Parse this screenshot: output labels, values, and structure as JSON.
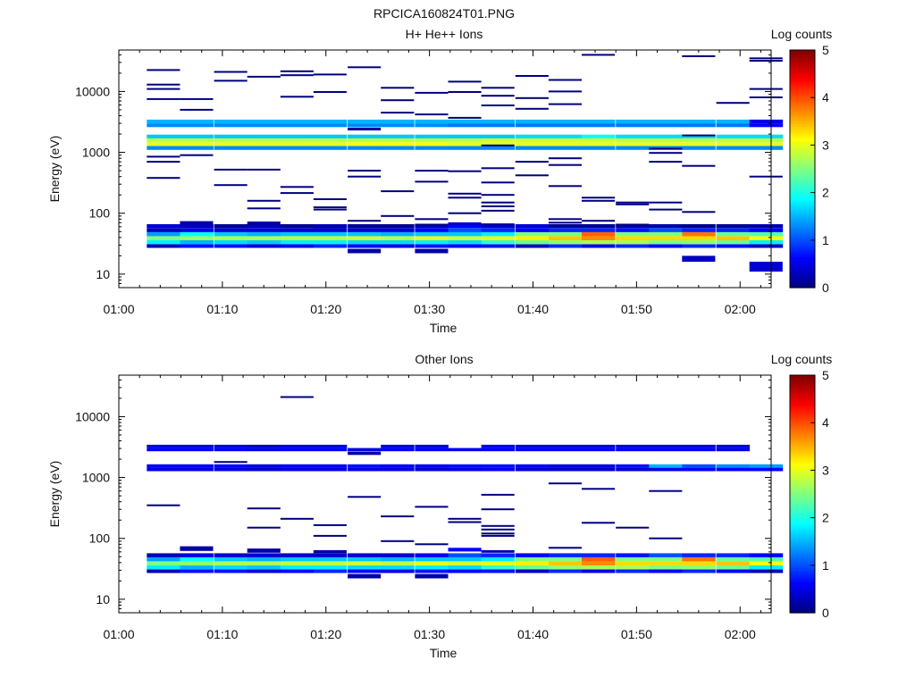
{
  "figure": {
    "title": "RPCICA160824T01.PNG"
  },
  "colormap": {
    "stops": [
      "#00007f",
      "#0000ff",
      "#0080ff",
      "#00ffff",
      "#80ff80",
      "#ffff00",
      "#ff8000",
      "#ff0000",
      "#7f0000"
    ]
  },
  "chart_data": [
    {
      "type": "heatmap",
      "title": "H+ He++ Ions",
      "xlabel": "Time",
      "ylabel": "Energy (eV)",
      "colorbar_label": "Log counts",
      "colorbar_ticks": [
        "0",
        "1",
        "2",
        "3",
        "4",
        "5"
      ],
      "xticks": [
        "01:00",
        "01:10",
        "01:20",
        "01:30",
        "01:40",
        "01:50",
        "02:00"
      ],
      "yticks": [
        "10",
        "100",
        "1000",
        "10000"
      ],
      "y_scale": "log",
      "xlim_minutes": [
        0,
        63
      ],
      "ylim_ev": [
        6,
        48000
      ],
      "clim": [
        0,
        5
      ],
      "bins_t_start_min": [
        2.7,
        5.9,
        9.2,
        12.4,
        15.6,
        18.8,
        22.1,
        25.3,
        28.6,
        31.8,
        35.0,
        38.3,
        41.5,
        44.7,
        48.0,
        51.2,
        54.4,
        57.7,
        60.9
      ],
      "bins_t_width_min": 3.2,
      "bands": [
        {
          "e_low": 27,
          "e_high": 31,
          "levels": [
            0.3,
            0.7,
            0.7,
            0.4,
            0.6,
            0.8,
            0.6,
            0.5,
            0.7,
            0.6,
            0.7,
            0.3,
            0.8,
            0.5,
            0.8,
            0.6,
            0.8,
            0.6,
            0.3
          ]
        },
        {
          "e_low": 31,
          "e_high": 36,
          "levels": [
            1.8,
            1.5,
            1.7,
            1.6,
            1.8,
            1.8,
            1.7,
            1.7,
            1.8,
            1.7,
            2.1,
            2.4,
            2.6,
            2.7,
            2.7,
            2.5,
            2.6,
            2.4,
            1.8
          ]
        },
        {
          "e_low": 36,
          "e_high": 42,
          "levels": [
            2.5,
            2.6,
            2.7,
            2.7,
            2.8,
            2.8,
            2.9,
            2.8,
            3.0,
            2.9,
            3.0,
            3.2,
            3.4,
            3.7,
            3.3,
            3.3,
            3.3,
            3.4,
            3.1
          ]
        },
        {
          "e_low": 42,
          "e_high": 49,
          "levels": [
            1.4,
            1.9,
            1.6,
            1.5,
            1.6,
            1.6,
            1.6,
            1.5,
            1.6,
            1.6,
            1.8,
            2.5,
            2.5,
            3.9,
            2.5,
            2.5,
            3.8,
            2.4,
            2.3
          ]
        },
        {
          "e_low": 49,
          "e_high": 57,
          "levels": [
            0.3,
            0.5,
            0.4,
            0.4,
            0.4,
            0.4,
            0.4,
            0.4,
            0.6,
            1.0,
            0.8,
            0.6,
            0.8,
            0.8,
            0.7,
            1.0,
            0.8,
            0.8,
            0.6
          ]
        },
        {
          "e_low": 57,
          "e_high": 66,
          "levels": [
            0.4,
            0.3,
            0.1,
            0.3,
            0.1,
            0.3,
            0.1,
            0.1,
            0.3,
            0.6,
            0.4,
            0.4,
            0.1,
            0.1,
            0.2,
            0.2,
            0.1,
            0.1,
            0.4
          ]
        },
        {
          "e_low": 1100,
          "e_high": 1270,
          "levels": [
            1.3,
            1.3,
            1.3,
            1.3,
            1.3,
            1.3,
            1.3,
            1.3,
            1.3,
            1.3,
            1.3,
            1.3,
            1.3,
            1.3,
            1.3,
            1.3,
            1.3,
            1.3,
            1.3
          ]
        },
        {
          "e_low": 1270,
          "e_high": 1470,
          "levels": [
            3.0,
            3.0,
            3.0,
            3.0,
            3.0,
            3.0,
            3.1,
            3.1,
            3.1,
            3.0,
            3.0,
            3.0,
            3.0,
            3.0,
            3.0,
            3.0,
            3.0,
            3.0,
            3.0
          ]
        },
        {
          "e_low": 1470,
          "e_high": 1700,
          "levels": [
            2.8,
            2.8,
            2.8,
            2.8,
            2.8,
            2.8,
            2.8,
            2.8,
            2.8,
            2.8,
            2.9,
            2.9,
            2.9,
            2.9,
            2.8,
            2.8,
            2.8,
            2.8,
            2.8
          ]
        },
        {
          "e_low": 1700,
          "e_high": 1960,
          "levels": [
            1.6,
            1.6,
            1.6,
            1.6,
            1.6,
            1.6,
            1.6,
            1.6,
            1.6,
            1.6,
            1.6,
            1.7,
            1.7,
            1.9,
            1.7,
            1.7,
            1.7,
            1.7,
            1.7
          ]
        },
        {
          "e_low": 2600,
          "e_high": 3000,
          "levels": [
            1.3,
            1.3,
            1.3,
            1.3,
            1.3,
            1.3,
            1.3,
            1.3,
            1.3,
            1.2,
            1.2,
            1.2,
            1.2,
            1.2,
            1.2,
            1.2,
            1.2,
            1.2,
            0.6
          ]
        },
        {
          "e_low": 3000,
          "e_high": 3450,
          "levels": [
            1.5,
            1.5,
            1.5,
            1.5,
            1.5,
            1.5,
            1.5,
            1.5,
            1.5,
            1.5,
            1.5,
            1.5,
            1.5,
            1.5,
            1.5,
            1.5,
            1.5,
            1.5,
            0.5
          ]
        }
      ],
      "lines": [
        [
          0,
          22500
        ],
        [
          0,
          13000
        ],
        [
          0,
          11000
        ],
        [
          0,
          7500
        ],
        [
          0,
          850
        ],
        [
          0,
          700
        ],
        [
          0,
          380
        ],
        [
          1,
          7500
        ],
        [
          1,
          5000
        ],
        [
          1,
          900
        ],
        [
          2,
          21000
        ],
        [
          2,
          15000
        ],
        [
          2,
          520
        ],
        [
          2,
          290
        ],
        [
          3,
          17500
        ],
        [
          3,
          520
        ],
        [
          3,
          160
        ],
        [
          3,
          120
        ],
        [
          4,
          21500
        ],
        [
          4,
          18500
        ],
        [
          4,
          8200
        ],
        [
          4,
          270
        ],
        [
          4,
          215
        ],
        [
          5,
          19000
        ],
        [
          5,
          9800
        ],
        [
          5,
          170
        ],
        [
          5,
          125
        ],
        [
          5,
          115
        ],
        [
          6,
          25000
        ],
        [
          6,
          500
        ],
        [
          6,
          400
        ],
        [
          6,
          75
        ],
        [
          7,
          11500
        ],
        [
          7,
          7200
        ],
        [
          7,
          4500
        ],
        [
          7,
          230
        ],
        [
          7,
          90
        ],
        [
          8,
          9500
        ],
        [
          8,
          4200
        ],
        [
          8,
          500
        ],
        [
          8,
          330
        ],
        [
          8,
          80
        ],
        [
          8,
          65
        ],
        [
          9,
          14500
        ],
        [
          9,
          9800
        ],
        [
          9,
          3700
        ],
        [
          9,
          490
        ],
        [
          9,
          210
        ],
        [
          9,
          180
        ],
        [
          9,
          100
        ],
        [
          10,
          11500
        ],
        [
          10,
          8500
        ],
        [
          10,
          5900
        ],
        [
          10,
          1300
        ],
        [
          10,
          550
        ],
        [
          10,
          320
        ],
        [
          10,
          200
        ],
        [
          10,
          150
        ],
        [
          10,
          130
        ],
        [
          10,
          110
        ],
        [
          11,
          18000
        ],
        [
          11,
          7800
        ],
        [
          11,
          5200
        ],
        [
          11,
          700
        ],
        [
          11,
          420
        ],
        [
          12,
          15500
        ],
        [
          12,
          10000
        ],
        [
          12,
          6200
        ],
        [
          12,
          800
        ],
        [
          12,
          620
        ],
        [
          12,
          280
        ],
        [
          12,
          80
        ],
        [
          12,
          70
        ],
        [
          13,
          40000
        ],
        [
          13,
          180
        ],
        [
          13,
          160
        ],
        [
          13,
          75
        ],
        [
          14,
          150
        ],
        [
          14,
          140
        ],
        [
          14,
          65
        ],
        [
          15,
          1150
        ],
        [
          15,
          980
        ],
        [
          15,
          700
        ],
        [
          15,
          150
        ],
        [
          15,
          115
        ],
        [
          16,
          38000
        ],
        [
          16,
          1900
        ],
        [
          16,
          600
        ],
        [
          16,
          105
        ],
        [
          16,
          62
        ],
        [
          17,
          6500
        ],
        [
          18,
          35000
        ],
        [
          18,
          32000
        ],
        [
          18,
          11000
        ],
        [
          18,
          8000
        ],
        [
          18,
          400
        ],
        [
          18,
          62
        ]
      ],
      "blocks": [
        [
          1,
          66,
          74,
          0.2
        ],
        [
          3,
          62,
          73,
          0.2
        ],
        [
          5,
          57,
          64,
          0.2
        ],
        [
          6,
          22,
          26,
          0.2
        ],
        [
          8,
          22,
          26,
          0.2
        ],
        [
          9,
          64,
          71,
          0.4
        ],
        [
          10,
          61,
          68,
          0.2
        ],
        [
          16,
          16,
          20,
          0.3
        ],
        [
          18,
          11,
          16,
          0.4
        ],
        [
          6,
          2300,
          2550,
          0.1
        ]
      ]
    },
    {
      "type": "heatmap",
      "title": "Other Ions",
      "xlabel": "Time",
      "ylabel": "Energy (eV)",
      "colorbar_label": "Log counts",
      "colorbar_ticks": [
        "0",
        "1",
        "2",
        "3",
        "4",
        "5"
      ],
      "xticks": [
        "01:00",
        "01:10",
        "01:20",
        "01:30",
        "01:40",
        "01:50",
        "02:00"
      ],
      "yticks": [
        "10",
        "100",
        "1000",
        "10000"
      ],
      "y_scale": "log",
      "xlim_minutes": [
        0,
        63
      ],
      "ylim_ev": [
        6,
        48000
      ],
      "clim": [
        0,
        5
      ],
      "bins_t_start_min": [
        2.7,
        5.9,
        9.2,
        12.4,
        15.6,
        18.8,
        22.1,
        25.3,
        28.6,
        31.8,
        35.0,
        38.3,
        41.5,
        44.7,
        48.0,
        51.2,
        54.4,
        57.7,
        60.9
      ],
      "bins_t_width_min": 3.2,
      "bands": [
        {
          "e_low": 27,
          "e_high": 31,
          "levels": [
            0.3,
            0.7,
            0.7,
            0.4,
            0.6,
            0.8,
            0.6,
            0.5,
            0.7,
            0.6,
            0.7,
            0.3,
            0.8,
            0.5,
            0.8,
            0.6,
            0.8,
            0.6,
            0.3
          ]
        },
        {
          "e_low": 31,
          "e_high": 36,
          "levels": [
            1.8,
            1.5,
            1.7,
            1.6,
            1.8,
            1.8,
            1.7,
            1.7,
            1.8,
            1.7,
            2.1,
            2.4,
            2.6,
            2.7,
            2.7,
            2.5,
            2.6,
            2.4,
            1.8
          ]
        },
        {
          "e_low": 36,
          "e_high": 42,
          "levels": [
            2.5,
            2.6,
            2.7,
            2.7,
            2.8,
            2.8,
            2.9,
            2.8,
            3.0,
            2.9,
            3.0,
            3.2,
            3.4,
            3.7,
            3.3,
            3.3,
            3.3,
            3.4,
            3.1
          ]
        },
        {
          "e_low": 42,
          "e_high": 49,
          "levels": [
            1.4,
            1.9,
            1.6,
            1.5,
            1.6,
            1.6,
            1.6,
            1.5,
            1.6,
            1.6,
            1.8,
            2.5,
            2.5,
            3.9,
            2.5,
            2.5,
            3.8,
            2.4,
            2.3
          ]
        },
        {
          "e_low": 49,
          "e_high": 57,
          "levels": [
            0.3,
            0.5,
            0.4,
            0.4,
            0.4,
            0.4,
            0.4,
            0.4,
            0.6,
            1.0,
            0.8,
            0.6,
            0.8,
            0.8,
            0.7,
            1.0,
            0.8,
            0.8,
            0.6
          ]
        },
        {
          "e_low": 1270,
          "e_high": 1450,
          "levels": [
            0.5,
            0.5,
            0.5,
            0.4,
            0.5,
            0.5,
            0.5,
            0.5,
            0.4,
            0.5,
            0.6,
            0.4,
            0.4,
            0.4,
            0.4,
            0.5,
            0.6,
            0.6,
            0.6
          ]
        },
        {
          "e_low": 1450,
          "e_high": 1650,
          "levels": [
            0.6,
            0.6,
            0.6,
            0.5,
            0.6,
            0.6,
            0.7,
            0.6,
            0.6,
            0.7,
            0.7,
            0.6,
            0.5,
            0.5,
            0.7,
            1.5,
            1.0,
            1.3,
            1.4
          ]
        },
        {
          "e_low": 2700,
          "e_high": 3050,
          "levels": [
            0.6,
            0.6,
            0.6,
            0.5,
            0.6,
            0.6,
            0.5,
            0.6,
            0.6,
            0.5,
            0.6,
            0.6,
            0.6,
            0.6,
            0.6,
            0.6,
            0.6,
            0.5,
            -1
          ]
        },
        {
          "e_low": 3050,
          "e_high": 3450,
          "levels": [
            0.5,
            0.5,
            0.5,
            0.4,
            0.5,
            0.5,
            -1,
            0.5,
            0.5,
            -1,
            0.6,
            0.5,
            0.5,
            0.5,
            0.5,
            0.5,
            0.5,
            0.5,
            -1
          ]
        }
      ],
      "lines": [
        [
          0,
          350
        ],
        [
          2,
          1800
        ],
        [
          3,
          310
        ],
        [
          3,
          150
        ],
        [
          4,
          21000
        ],
        [
          4,
          210
        ],
        [
          5,
          165
        ],
        [
          5,
          110
        ],
        [
          6,
          480
        ],
        [
          7,
          230
        ],
        [
          7,
          90
        ],
        [
          8,
          330
        ],
        [
          8,
          80
        ],
        [
          9,
          210
        ],
        [
          9,
          185
        ],
        [
          10,
          520
        ],
        [
          10,
          300
        ],
        [
          10,
          160
        ],
        [
          10,
          140
        ],
        [
          10,
          120
        ],
        [
          10,
          110
        ],
        [
          12,
          800
        ],
        [
          12,
          70
        ],
        [
          13,
          650
        ],
        [
          13,
          180
        ],
        [
          14,
          150
        ],
        [
          15,
          600
        ],
        [
          15,
          100
        ]
      ],
      "blocks": [
        [
          1,
          62,
          74,
          0.2
        ],
        [
          3,
          58,
          68,
          0.2
        ],
        [
          5,
          57,
          64,
          0.2
        ],
        [
          6,
          22,
          26,
          0.2
        ],
        [
          8,
          22,
          26,
          0.2
        ],
        [
          9,
          61,
          70,
          0.6
        ],
        [
          10,
          58,
          64,
          0.2
        ],
        [
          6,
          2350,
          2650,
          0.2
        ]
      ]
    }
  ]
}
